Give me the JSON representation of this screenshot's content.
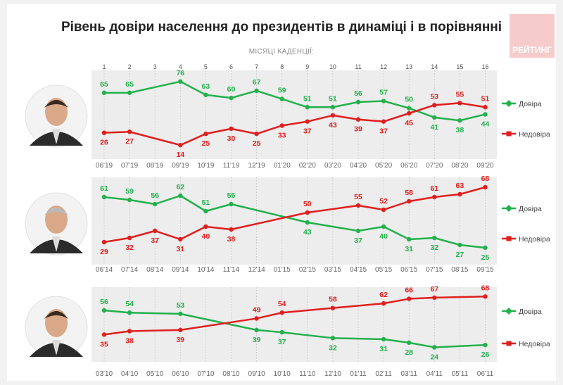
{
  "title": "Рівень довіри населення до президентів в динаміці і в порівнянні",
  "subtitle": "МІСЯЦІ КАДЕНЦІЇ:",
  "brand": "РЕЙТИНГ",
  "colors": {
    "trust": "#22b14c",
    "distrust": "#e01e1e"
  },
  "chart_data": {
    "type": "line",
    "month_numbers": [
      "1",
      "2",
      "3",
      "4",
      "5",
      "6",
      "7",
      "8",
      "9",
      "10",
      "11",
      "12",
      "13",
      "14",
      "15",
      "16"
    ],
    "panels": [
      {
        "president": "zelensky",
        "categories": [
          "06'19",
          "07'19",
          "08'19",
          "09'19",
          "10'19",
          "11'19",
          "12'19",
          "01'20",
          "02'20",
          "03'20",
          "04'20",
          "05'20",
          "06'20",
          "07'20",
          "08'20",
          "09'20"
        ],
        "series": [
          {
            "name": "Довіра",
            "key": "trust",
            "values": [
              65,
              65,
              null,
              76,
              63,
              60,
              67,
              59,
              51,
              51,
              56,
              57,
              50,
              41,
              38,
              44
            ]
          },
          {
            "name": "Недовіра",
            "key": "distrust",
            "values": [
              26,
              27,
              null,
              14,
              25,
              30,
              25,
              33,
              37,
              43,
              39,
              37,
              45,
              53,
              55,
              51
            ]
          }
        ]
      },
      {
        "president": "poroshenko",
        "categories": [
          "06'14",
          "07'14",
          "08'14",
          "09'14",
          "10'14",
          "11'14",
          "12'14",
          "01'15",
          "02'15",
          "03'15",
          "04'15",
          "05'15",
          "06'15",
          "07'15",
          "08'15",
          "09'15"
        ],
        "series": [
          {
            "name": "Довіра",
            "key": "trust",
            "values": [
              61,
              59,
              56,
              62,
              51,
              56,
              null,
              null,
              43,
              null,
              37,
              40,
              31,
              32,
              27,
              25
            ]
          },
          {
            "name": "Недовіра",
            "key": "distrust",
            "values": [
              29,
              32,
              37,
              31,
              40,
              38,
              null,
              null,
              50,
              null,
              55,
              52,
              58,
              61,
              63,
              68
            ]
          }
        ]
      },
      {
        "president": "yanukovych",
        "categories": [
          "03'10",
          "04'10",
          "05'10",
          "06'10",
          "07'10",
          "08'10",
          "09'10",
          "10'10",
          "11'10",
          "12'10",
          "01'11",
          "02'11",
          "03'11",
          "04'11",
          "05'11",
          "06'11"
        ],
        "series": [
          {
            "name": "Довіра",
            "key": "trust",
            "values": [
              56,
              54,
              null,
              53,
              null,
              null,
              39,
              37,
              null,
              32,
              null,
              31,
              28,
              24,
              null,
              26
            ]
          },
          {
            "name": "Недовіра",
            "key": "distrust",
            "values": [
              35,
              38,
              null,
              39,
              null,
              null,
              49,
              54,
              null,
              58,
              null,
              62,
              66,
              67,
              null,
              68
            ]
          }
        ]
      }
    ]
  }
}
